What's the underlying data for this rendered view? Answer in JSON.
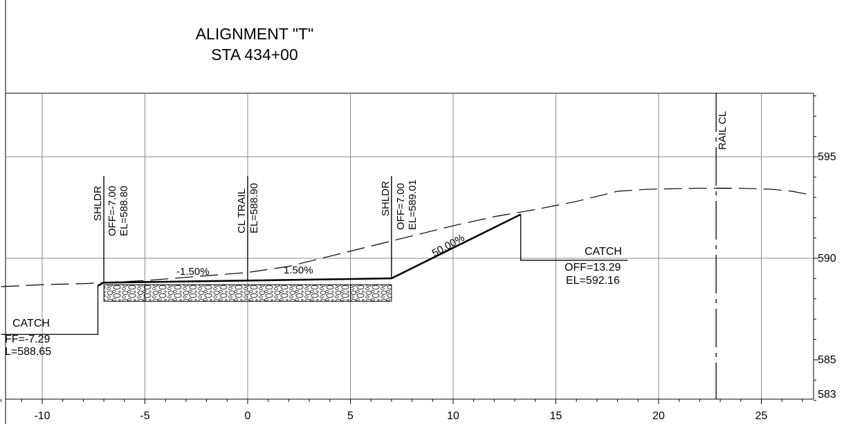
{
  "title": {
    "line1": "ALIGNMENT \"T\"",
    "line2": "STA 434+00"
  },
  "x_axis": {
    "ticks": [
      "-10",
      "-5",
      "0",
      "5",
      "10",
      "15",
      "20",
      "25"
    ]
  },
  "y_axis": {
    "ticks": [
      "595",
      "590",
      "585",
      "583"
    ]
  },
  "slopes": {
    "left": "-1.50%",
    "right": "1.50%",
    "fill": "50.00%"
  },
  "labels": {
    "shldr_left": {
      "name": "SHLDR",
      "off": "OFF=-7.00",
      "el": "EL=588.80"
    },
    "cl_trail": {
      "name": "CL TRAIL",
      "el": "EL=588.90"
    },
    "shldr_right": {
      "name": "SHLDR",
      "off": "OFF=7.00",
      "el": "EL=589.01"
    },
    "catch_right": {
      "name": "CATCH",
      "off": "OFF=13.29",
      "el": "EL=592.16"
    },
    "catch_left": {
      "name": "CATCH",
      "off": "FF=-7.29",
      "el": "L=588.65"
    },
    "rail_cl": "RAIL CL"
  },
  "chart_data": {
    "type": "line",
    "title": "ALIGNMENT \"T\" STA 434+00",
    "xlabel": "",
    "ylabel": "",
    "xlim": [
      -12,
      28
    ],
    "ylim": [
      583,
      598
    ],
    "x_ticks": [
      -10,
      -5,
      0,
      5,
      10,
      15,
      20,
      25
    ],
    "y_ticks": [
      595,
      590,
      585,
      583
    ],
    "grid": true,
    "series": [
      {
        "kind": "existing-ground-dashed",
        "x": [
          -12,
          -10,
          -8,
          -7,
          -5,
          0,
          2,
          4,
          6,
          8,
          10,
          12,
          14,
          16,
          18,
          19.5,
          22,
          24,
          25.5,
          26.5,
          27.5
        ],
        "y": [
          588.6,
          588.7,
          588.75,
          588.8,
          588.9,
          589.3,
          589.6,
          590.1,
          590.6,
          591.1,
          591.6,
          592.05,
          592.4,
          592.8,
          593.3,
          593.4,
          593.45,
          593.45,
          593.4,
          593.3,
          593.1
        ]
      },
      {
        "kind": "proposed-section-thick",
        "x": [
          -7.29,
          -7.0,
          0,
          7.0,
          13.29
        ],
        "y": [
          588.65,
          588.8,
          588.9,
          589.01,
          592.16
        ]
      },
      {
        "kind": "catch-leader-left",
        "x": [
          -12,
          -7.29,
          -7.29
        ],
        "y": [
          586.25,
          586.25,
          588.65
        ]
      },
      {
        "kind": "catch-leader-right",
        "x": [
          13.29,
          13.29,
          18.5
        ],
        "y": [
          592.16,
          589.9,
          589.9
        ]
      }
    ],
    "vertical_markers": [
      {
        "x": -7.0,
        "label": "SHLDR"
      },
      {
        "x": 0,
        "label": "CL TRAIL"
      },
      {
        "x": 7.0,
        "label": "SHLDR"
      },
      {
        "x": 22.8,
        "label": "RAIL CL"
      }
    ],
    "pavement_segments": [
      {
        "x0": -7.0,
        "x1": -5.0
      },
      {
        "x0": -5.0,
        "x1": 5.0
      },
      {
        "x0": 5.0,
        "x1": 7.0
      }
    ]
  }
}
